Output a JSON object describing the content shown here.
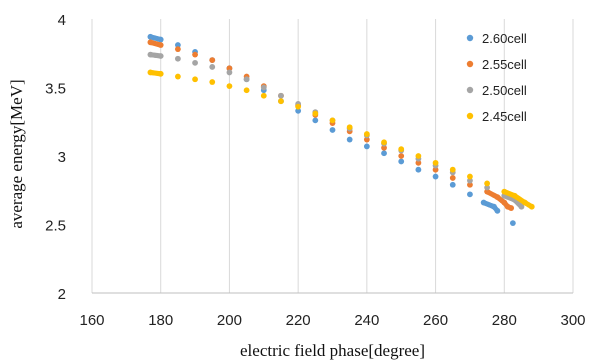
{
  "chart_data": {
    "type": "scatter",
    "title": "",
    "xlabel": "electric field phase[degree]",
    "ylabel": "average energy[MeV]",
    "xlim": [
      160,
      300
    ],
    "ylim": [
      2,
      4
    ],
    "xticks": [
      "160",
      "180",
      "200",
      "220",
      "240",
      "260",
      "280",
      "300"
    ],
    "yticks": [
      "2",
      "2.5",
      "3",
      "3.5",
      "4"
    ],
    "grid": "vertical",
    "legend_position": "top-right",
    "series": [
      {
        "name": "2.60cell",
        "color": "#5b9bd5",
        "x": [
          177,
          180,
          185,
          190,
          195,
          200,
          205,
          210,
          215,
          220,
          225,
          230,
          235,
          240,
          245,
          250,
          255,
          260,
          265,
          270,
          274,
          277,
          278,
          282.5
        ],
        "y": [
          3.87,
          3.85,
          3.81,
          3.76,
          3.7,
          3.64,
          3.56,
          3.48,
          3.4,
          3.33,
          3.26,
          3.19,
          3.12,
          3.07,
          3.02,
          2.96,
          2.9,
          2.85,
          2.79,
          2.72,
          2.66,
          2.63,
          2.6,
          2.51
        ]
      },
      {
        "name": "2.55cell",
        "color": "#ed7d31",
        "x": [
          177,
          180,
          185,
          190,
          195,
          200,
          205,
          210,
          215,
          220,
          225,
          230,
          235,
          240,
          245,
          250,
          255,
          260,
          265,
          270,
          275,
          278,
          280,
          281,
          282
        ],
        "y": [
          3.83,
          3.81,
          3.78,
          3.74,
          3.7,
          3.64,
          3.58,
          3.51,
          3.44,
          3.37,
          3.3,
          3.24,
          3.18,
          3.12,
          3.06,
          3.0,
          2.95,
          2.9,
          2.84,
          2.79,
          2.74,
          2.7,
          2.66,
          2.63,
          2.62
        ]
      },
      {
        "name": "2.50cell",
        "color": "#a5a5a5",
        "x": [
          177,
          180,
          185,
          190,
          195,
          200,
          205,
          210,
          215,
          220,
          225,
          230,
          235,
          240,
          245,
          250,
          255,
          260,
          265,
          270,
          275,
          280,
          283,
          285
        ],
        "y": [
          3.74,
          3.73,
          3.71,
          3.68,
          3.65,
          3.61,
          3.56,
          3.5,
          3.44,
          3.38,
          3.32,
          3.26,
          3.2,
          3.15,
          3.09,
          3.04,
          2.98,
          2.93,
          2.88,
          2.82,
          2.77,
          2.71,
          2.68,
          2.63
        ]
      },
      {
        "name": "2.45cell",
        "color": "#ffc000",
        "x": [
          177,
          180,
          185,
          190,
          195,
          200,
          205,
          210,
          215,
          220,
          225,
          230,
          235,
          240,
          245,
          250,
          255,
          260,
          265,
          270,
          275,
          280,
          283,
          286,
          288
        ],
        "y": [
          3.61,
          3.6,
          3.58,
          3.56,
          3.54,
          3.51,
          3.48,
          3.44,
          3.4,
          3.36,
          3.31,
          3.26,
          3.21,
          3.16,
          3.1,
          3.05,
          3.0,
          2.95,
          2.9,
          2.85,
          2.8,
          2.74,
          2.71,
          2.66,
          2.63
        ]
      }
    ]
  }
}
